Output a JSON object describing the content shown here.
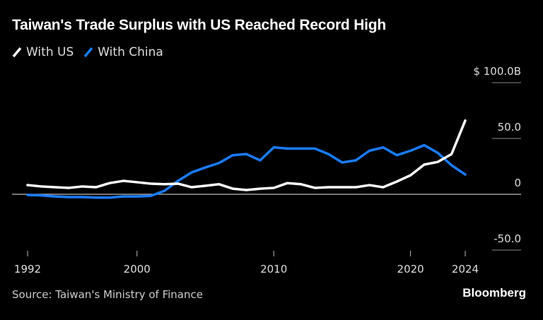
{
  "chart_data": {
    "type": "line",
    "title": "Taiwan's Trade Surplus with US Reached Record High",
    "x": [
      1992,
      1993,
      1994,
      1995,
      1996,
      1997,
      1998,
      1999,
      2000,
      2001,
      2002,
      2003,
      2004,
      2005,
      2006,
      2007,
      2008,
      2009,
      2010,
      2011,
      2012,
      2013,
      2014,
      2015,
      2016,
      2017,
      2018,
      2019,
      2020,
      2021,
      2022,
      2023,
      2024
    ],
    "series": [
      {
        "name": "With US",
        "color": "#ffffff",
        "values": [
          8.2,
          7,
          6.3,
          5.7,
          7,
          6.3,
          10,
          12,
          10.8,
          9.5,
          9,
          9.5,
          6.3,
          7.6,
          9,
          5,
          3.8,
          5,
          5.7,
          10,
          9,
          5.7,
          6.3,
          6.3,
          6.3,
          8.2,
          6.3,
          11.4,
          17,
          26.6,
          29,
          36,
          66
        ]
      },
      {
        "name": "With China",
        "color": "#1a7cff",
        "values": [
          -0.6,
          -1,
          -2,
          -2.5,
          -2.5,
          -3,
          -3,
          -2,
          -2,
          -1.5,
          3,
          12,
          19.6,
          24,
          28,
          35,
          36,
          30.4,
          42,
          41,
          41,
          41,
          36,
          28.5,
          30.4,
          39,
          42,
          35,
          39,
          44,
          37,
          26,
          17.7
        ]
      }
    ],
    "ylim": [
      -50,
      100
    ],
    "y_ticks": [
      {
        "v": 100,
        "label": "$ 100.0B"
      },
      {
        "v": 50,
        "label": "50.0"
      },
      {
        "v": 0,
        "label": "0"
      },
      {
        "v": -50,
        "label": "-50.0"
      }
    ],
    "x_ticks": [
      1992,
      2000,
      2010,
      2020,
      2024
    ],
    "xlabel": "",
    "ylabel": "",
    "legend_position": "top-left"
  },
  "source": "Source: Taiwan's Ministry of Finance",
  "brand": "Bloomberg"
}
